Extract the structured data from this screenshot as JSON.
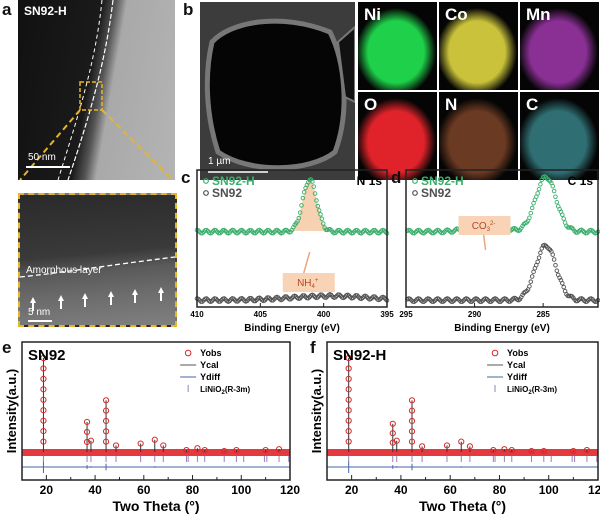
{
  "panels": {
    "a": {
      "label": "a",
      "sample": "SN92-H",
      "scale_top": "50 nm",
      "inset_annotation": "Amorphous layer",
      "scale_inset": "5 nm"
    },
    "b": {
      "label": "b",
      "scale": "1 µm",
      "maps": [
        {
          "element": "Ni",
          "color": "#1fd14a"
        },
        {
          "element": "Co",
          "color": "#c9c23a"
        },
        {
          "element": "Mn",
          "color": "#8a2f94"
        },
        {
          "element": "O",
          "color": "#e0232a"
        },
        {
          "element": "N",
          "color": "#6b3a22"
        },
        {
          "element": "C",
          "color": "#2f6e72"
        }
      ]
    },
    "c": {
      "label": "c"
    },
    "d": {
      "label": "d"
    },
    "e": {
      "label": "e"
    },
    "f": {
      "label": "f"
    }
  },
  "chart_data": [
    {
      "id": "c",
      "type": "scatter",
      "title": "N 1s",
      "xlabel": "Binding Energy (eV)",
      "xlim": [
        410,
        395
      ],
      "x_reversed": true,
      "xticks": [
        "410",
        "405",
        "400",
        "395"
      ],
      "annotation": {
        "text": "NH",
        "sub": "4",
        "sup": "+",
        "x": 401.1
      },
      "series": [
        {
          "name": "SN92-H",
          "color": "#3aae6c",
          "baseline": 0.55,
          "peaks": [
            {
              "center": 401.1,
              "height": 0.38,
              "width": 0.55
            }
          ]
        },
        {
          "name": "SN92",
          "color": "#505050",
          "baseline": 0.05,
          "peaks": [
            {
              "center": 399.5,
              "height": 0.03,
              "width": 3
            }
          ]
        }
      ]
    },
    {
      "id": "d",
      "type": "scatter",
      "title": "C 1s",
      "xlabel": "Binding Energy (eV)",
      "xlim": [
        295,
        281
      ],
      "x_reversed": true,
      "xticks": [
        "295",
        "290",
        "285"
      ],
      "annotation": {
        "text": "CO",
        "sub": "3",
        "sup": "2-",
        "x": 289.2
      },
      "series": [
        {
          "name": "SN92-H",
          "color": "#3aae6c",
          "baseline": 0.55,
          "peaks": [
            {
              "center": 284.8,
              "height": 0.4,
              "width": 0.75
            },
            {
              "center": 289.2,
              "height": 0.06,
              "width": 1.1
            }
          ]
        },
        {
          "name": "SN92",
          "color": "#505050",
          "baseline": 0.05,
          "peaks": [
            {
              "center": 284.8,
              "height": 0.4,
              "width": 0.75
            }
          ]
        }
      ]
    },
    {
      "id": "e",
      "type": "line",
      "title": "SN92",
      "xlabel": "Two Theta (°)",
      "ylabel": "Intensity(a.u.)",
      "xlim": [
        10,
        120
      ],
      "xticks": [
        "20",
        "40",
        "60",
        "80",
        "100",
        "120"
      ],
      "legend": {
        "position": "top-right",
        "entries": [
          "Yobs",
          "Ycal",
          "Ydiff",
          "LiNiO2(R-3m)"
        ]
      },
      "peaks": [
        [
          18.8,
          1.0
        ],
        [
          36.7,
          0.32
        ],
        [
          38.3,
          0.12
        ],
        [
          44.5,
          0.55
        ],
        [
          48.6,
          0.07
        ],
        [
          58.7,
          0.09
        ],
        [
          64.5,
          0.13
        ],
        [
          68.0,
          0.07
        ],
        [
          77.5,
          0.02
        ],
        [
          82.0,
          0.04
        ],
        [
          85.0,
          0.02
        ],
        [
          93.0,
          0.01
        ],
        [
          98.0,
          0.02
        ],
        [
          110.0,
          0.02
        ],
        [
          115.5,
          0.03
        ]
      ]
    },
    {
      "id": "f",
      "type": "line",
      "title": "SN92-H",
      "xlabel": "Two Theta (°)",
      "ylabel": "Intensity(a.u.)",
      "xlim": [
        10,
        120
      ],
      "xticks": [
        "20",
        "40",
        "60",
        "80",
        "100",
        "120"
      ],
      "legend": {
        "position": "top-right",
        "entries": [
          "Yobs",
          "Ycal",
          "Ydiff",
          "LiNiO2(R-3m)"
        ]
      },
      "peaks": [
        [
          18.8,
          1.0
        ],
        [
          36.7,
          0.3
        ],
        [
          38.3,
          0.12
        ],
        [
          44.5,
          0.55
        ],
        [
          48.6,
          0.06
        ],
        [
          58.7,
          0.07
        ],
        [
          64.5,
          0.11
        ],
        [
          68.0,
          0.06
        ],
        [
          77.5,
          0.02
        ],
        [
          82.0,
          0.03
        ],
        [
          85.0,
          0.02
        ],
        [
          93.0,
          0.01
        ],
        [
          98.0,
          0.01
        ],
        [
          110.0,
          0.01
        ],
        [
          115.5,
          0.02
        ]
      ]
    }
  ],
  "reflections": [
    18.8,
    36.7,
    38.3,
    44.5,
    48.6,
    58.7,
    64.5,
    68.0,
    77.5,
    78.2,
    82.0,
    85.0,
    93.0,
    98.0,
    101.0,
    109.5,
    110.5,
    115.5,
    119.5
  ]
}
